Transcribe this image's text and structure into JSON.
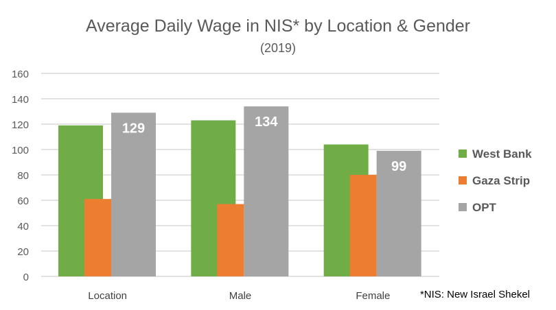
{
  "chart_data": {
    "type": "bar",
    "title": "Average Daily Wage in NIS* by Location & Gender",
    "subtitle": "(2019)",
    "xlabel": "",
    "ylabel": "",
    "categories": [
      "Location",
      "Male",
      "Female"
    ],
    "series": [
      {
        "name": "West Bank",
        "color": "#70AD47",
        "values": [
          119,
          123,
          104
        ]
      },
      {
        "name": "Gaza Strip",
        "color": "#ED7D31",
        "values": [
          61,
          57,
          80
        ]
      },
      {
        "name": "OPT",
        "color": "#A5A5A5",
        "values": [
          129,
          134,
          99
        ],
        "data_labels": [
          "129",
          "134",
          "99"
        ]
      }
    ],
    "ylim": [
      0,
      160
    ],
    "yticks": [
      0,
      20,
      40,
      60,
      80,
      100,
      120,
      140,
      160
    ],
    "grid": true,
    "legend_position": "right",
    "footnote": "*NIS: New Israel Shekel"
  }
}
